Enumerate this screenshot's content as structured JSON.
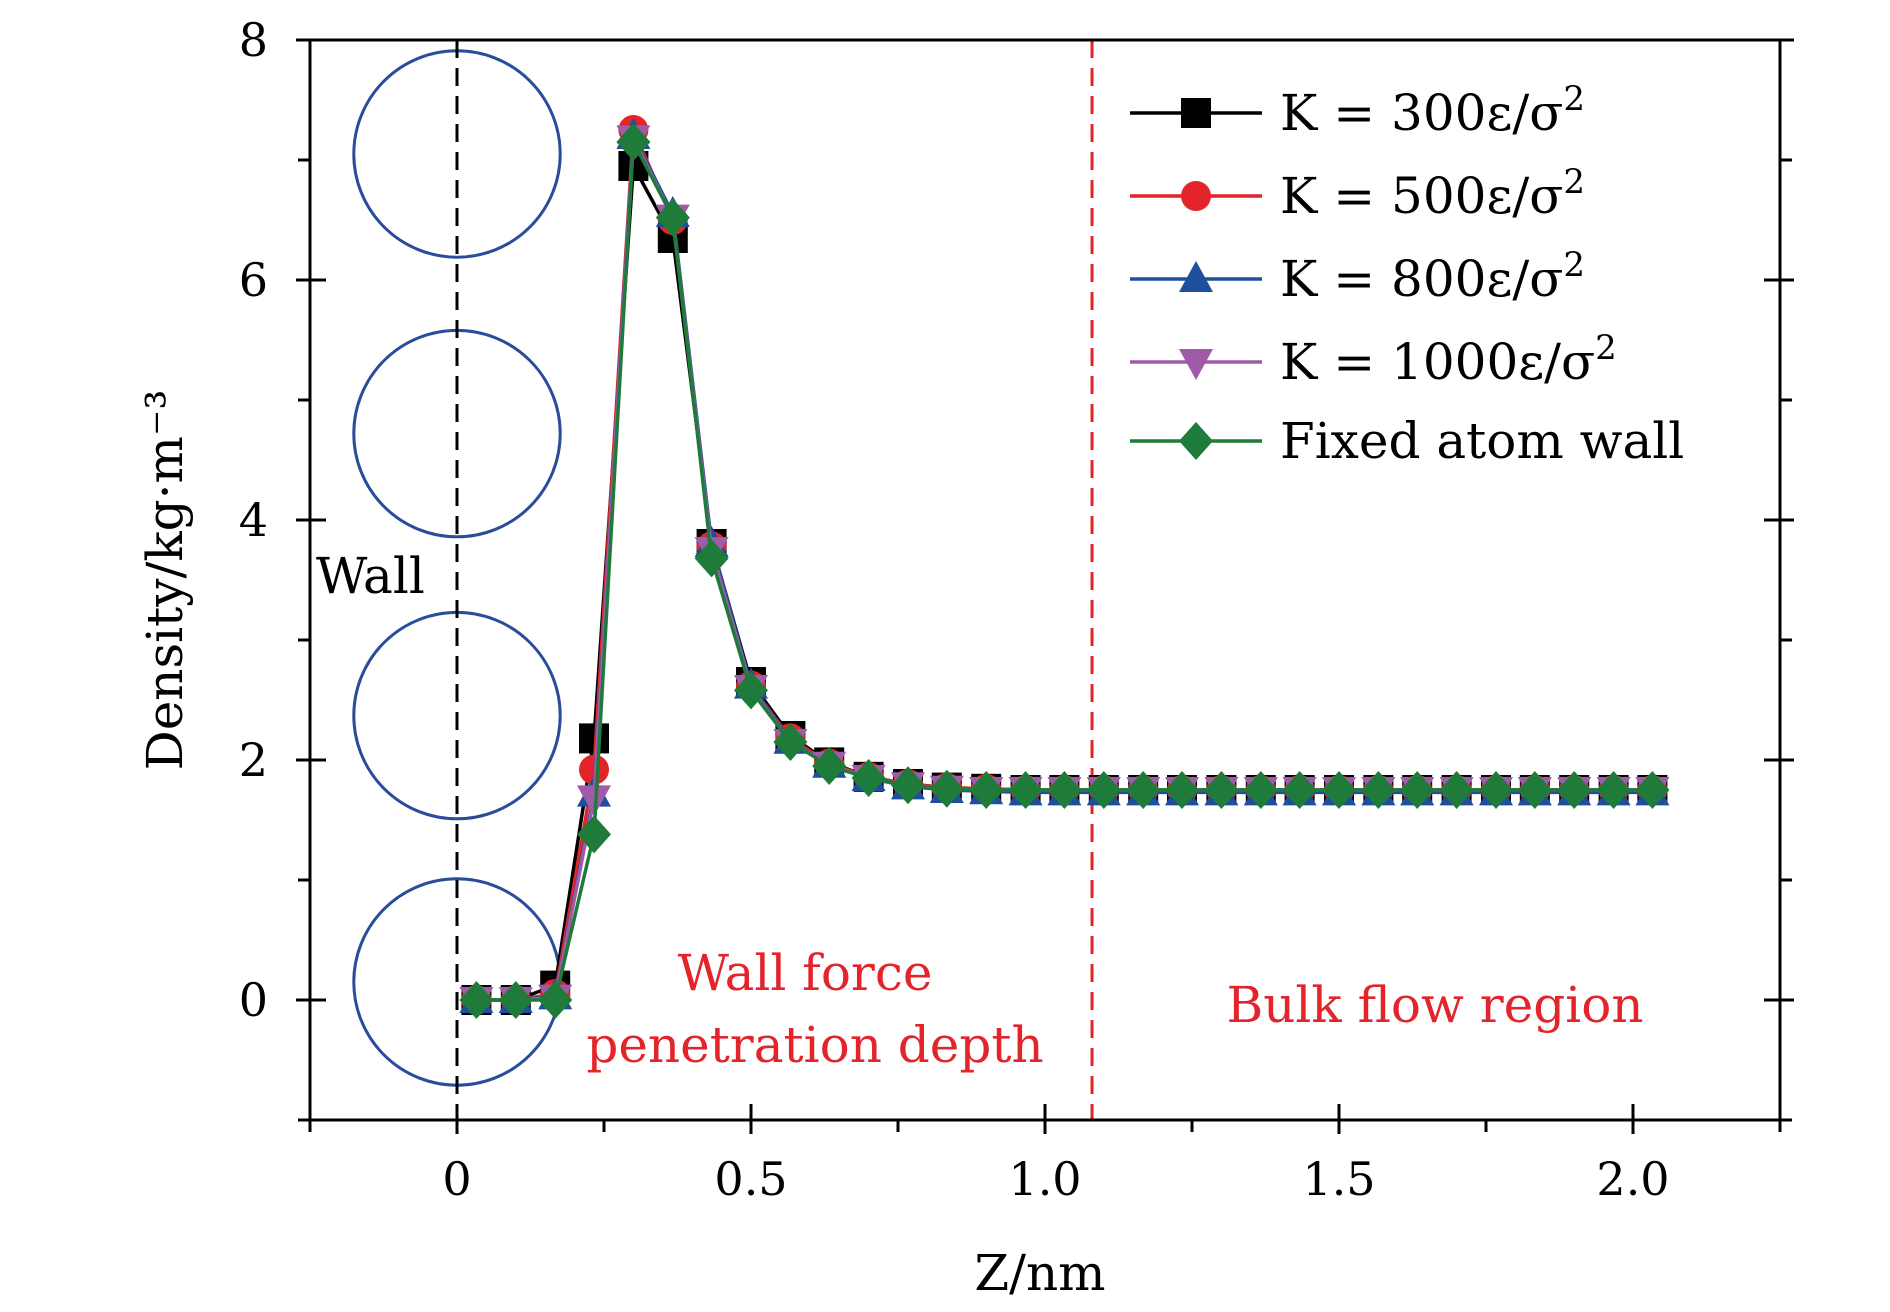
{
  "chart_data": {
    "type": "line",
    "xlabel": "Z/nm",
    "ylabel": "Density/kg·m⁻³",
    "xlim": [
      -0.25,
      2.25
    ],
    "ylim": [
      -1,
      8
    ],
    "x_ticks": [
      0,
      0.5,
      1.0,
      1.5,
      2.0
    ],
    "x_tick_labels": [
      "0",
      "0.5",
      "1.0",
      "1.5",
      "2.0"
    ],
    "y_ticks": [
      0,
      2,
      4,
      6,
      8
    ],
    "y_tick_labels": [
      "0",
      "2",
      "4",
      "6",
      "8"
    ],
    "grid": false,
    "legend_position": "top-right",
    "vlines": [
      {
        "x": 0,
        "color": "#000000",
        "style": "dashed"
      },
      {
        "x": 1.08,
        "color": "#e3242b",
        "style": "dashed"
      }
    ],
    "wall_atoms_y": [
      0.15,
      2.37,
      4.72,
      7.05
    ],
    "annotations": {
      "wall": "Wall",
      "penetration_line1": "Wall force",
      "penetration_line2": "penetration depth",
      "bulk": "Bulk flow region"
    },
    "x": [
      0.033,
      0.1,
      0.167,
      0.233,
      0.3,
      0.367,
      0.433,
      0.5,
      0.567,
      0.633,
      0.7,
      0.767,
      0.833,
      0.9,
      0.967,
      1.033,
      1.1,
      1.167,
      1.233,
      1.3,
      1.367,
      1.433,
      1.5,
      1.567,
      1.633,
      1.7,
      1.767,
      1.833,
      1.9,
      1.967,
      2.033
    ],
    "series": [
      {
        "name": "K = 300ε/σ",
        "name_sup": "2",
        "color": "#000000",
        "marker": "square",
        "values": [
          0.0,
          0.0,
          0.12,
          2.18,
          6.95,
          6.35,
          3.8,
          2.65,
          2.2,
          1.98,
          1.86,
          1.8,
          1.77,
          1.76,
          1.75,
          1.75,
          1.75,
          1.75,
          1.75,
          1.75,
          1.75,
          1.75,
          1.75,
          1.75,
          1.75,
          1.75,
          1.75,
          1.75,
          1.75,
          1.75,
          1.75
        ]
      },
      {
        "name": "K = 500ε/σ",
        "name_sup": "2",
        "color": "#e3242b",
        "marker": "circle",
        "values": [
          0.0,
          0.0,
          0.05,
          1.92,
          7.25,
          6.5,
          3.78,
          2.62,
          2.18,
          1.97,
          1.86,
          1.8,
          1.77,
          1.76,
          1.75,
          1.75,
          1.75,
          1.75,
          1.75,
          1.75,
          1.75,
          1.75,
          1.75,
          1.75,
          1.75,
          1.75,
          1.75,
          1.75,
          1.75,
          1.75,
          1.75
        ]
      },
      {
        "name": "K = 800ε/σ",
        "name_sup": "2",
        "color": "#1f4e9c",
        "marker": "triangle-up",
        "values": [
          0.0,
          0.0,
          0.03,
          1.72,
          7.2,
          6.55,
          3.8,
          2.62,
          2.16,
          1.96,
          1.85,
          1.78,
          1.75,
          1.74,
          1.73,
          1.73,
          1.73,
          1.73,
          1.73,
          1.73,
          1.73,
          1.73,
          1.73,
          1.73,
          1.73,
          1.73,
          1.73,
          1.73,
          1.73,
          1.73,
          1.73
        ]
      },
      {
        "name": "K = 1000ε/σ",
        "name_sup": "2",
        "color": "#a05ba8",
        "marker": "triangle-down",
        "values": [
          0.0,
          0.0,
          0.02,
          1.68,
          7.18,
          6.52,
          3.75,
          2.6,
          2.15,
          1.96,
          1.85,
          1.79,
          1.76,
          1.75,
          1.75,
          1.75,
          1.75,
          1.75,
          1.75,
          1.75,
          1.75,
          1.75,
          1.75,
          1.75,
          1.75,
          1.75,
          1.75,
          1.75,
          1.75,
          1.75,
          1.75
        ]
      },
      {
        "name": "Fixed atom wall",
        "name_sup": "",
        "color": "#1e7b3a",
        "marker": "diamond",
        "values": [
          0.0,
          0.0,
          0.0,
          1.38,
          7.15,
          6.52,
          3.68,
          2.58,
          2.15,
          1.95,
          1.85,
          1.79,
          1.76,
          1.75,
          1.75,
          1.75,
          1.75,
          1.75,
          1.75,
          1.75,
          1.75,
          1.75,
          1.75,
          1.75,
          1.75,
          1.75,
          1.75,
          1.75,
          1.75,
          1.75,
          1.75
        ]
      }
    ]
  }
}
